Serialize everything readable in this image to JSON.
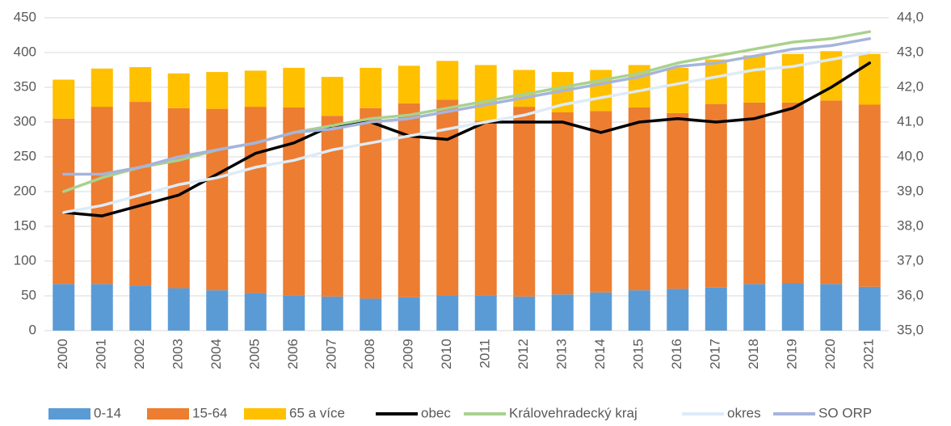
{
  "chart_data": {
    "type": "bar",
    "stacked": true,
    "grid": true,
    "legend": "bottom",
    "categories": [
      "2000",
      "2001",
      "2002",
      "2003",
      "2004",
      "2005",
      "2006",
      "2007",
      "2008",
      "2009",
      "2010",
      "2011",
      "2012",
      "2013",
      "2014",
      "2015",
      "2016",
      "2017",
      "2018",
      "2019",
      "2020",
      "2021"
    ],
    "ylim": [
      0,
      450
    ],
    "yticks": [
      0,
      50,
      100,
      150,
      200,
      250,
      300,
      350,
      400,
      450
    ],
    "y2lim": [
      35,
      44
    ],
    "y2ticks": [
      {
        "value": 35,
        "label": "35,0"
      },
      {
        "value": 36,
        "label": "36,0"
      },
      {
        "value": 37,
        "label": "37,0"
      },
      {
        "value": 38,
        "label": "38,0"
      },
      {
        "value": 39,
        "label": "39,0"
      },
      {
        "value": 40,
        "label": "40,0"
      },
      {
        "value": 41,
        "label": "41,0"
      },
      {
        "value": 42,
        "label": "42,0"
      },
      {
        "value": 43,
        "label": "43,0"
      },
      {
        "value": 44,
        "label": "44,0"
      }
    ],
    "series": [
      {
        "name": "0-14",
        "type": "bar",
        "color": "#5b9bd5",
        "values": [
          67,
          67,
          65,
          61,
          58,
          54,
          51,
          49,
          46,
          48,
          50,
          51,
          49,
          52,
          55,
          58,
          60,
          62,
          67,
          68,
          67,
          63
        ]
      },
      {
        "name": "15-64",
        "type": "bar",
        "color": "#ed7d31",
        "values": [
          238,
          255,
          264,
          259,
          261,
          268,
          270,
          260,
          274,
          279,
          282,
          251,
          273,
          262,
          261,
          263,
          253,
          264,
          261,
          260,
          264,
          262
        ]
      },
      {
        "name": "65 a více",
        "type": "bar",
        "color": "#ffc000",
        "values": [
          56,
          55,
          50,
          50,
          53,
          52,
          57,
          56,
          58,
          54,
          56,
          80,
          53,
          58,
          59,
          61,
          65,
          64,
          68,
          70,
          71,
          73
        ]
      },
      {
        "name": "obec",
        "type": "line",
        "axis": "y2",
        "color": "#000000",
        "values": [
          38.4,
          38.3,
          38.6,
          38.9,
          39.5,
          40.1,
          40.4,
          40.9,
          41.0,
          40.6,
          40.5,
          41.0,
          41.0,
          41.0,
          40.7,
          41.0,
          41.1,
          41.0,
          41.1,
          41.4,
          42.0,
          42.7
        ]
      },
      {
        "name": "Královehradecký kraj",
        "type": "line",
        "axis": "y2",
        "color": "#a9d18e",
        "values": [
          39.0,
          39.4,
          39.7,
          39.9,
          40.2,
          40.4,
          40.7,
          40.9,
          41.1,
          41.2,
          41.4,
          41.6,
          41.8,
          42.0,
          42.2,
          42.4,
          42.7,
          42.9,
          43.1,
          43.3,
          43.4,
          43.6
        ]
      },
      {
        "name": "okres",
        "type": "line",
        "axis": "y2",
        "color": "#deebf7",
        "values": [
          38.4,
          38.6,
          38.9,
          39.2,
          39.4,
          39.7,
          39.9,
          40.2,
          40.4,
          40.6,
          40.8,
          41.0,
          41.2,
          41.5,
          41.7,
          41.9,
          42.1,
          42.3,
          42.5,
          42.6,
          42.8,
          43.0
        ]
      },
      {
        "name": "SO ORP",
        "type": "line",
        "axis": "y2",
        "color": "#a5b4dc",
        "values": [
          39.5,
          39.5,
          39.7,
          40.0,
          40.2,
          40.4,
          40.7,
          40.8,
          41.0,
          41.1,
          41.3,
          41.5,
          41.7,
          41.9,
          42.1,
          42.3,
          42.6,
          42.7,
          42.9,
          43.1,
          43.2,
          43.4
        ]
      }
    ]
  }
}
